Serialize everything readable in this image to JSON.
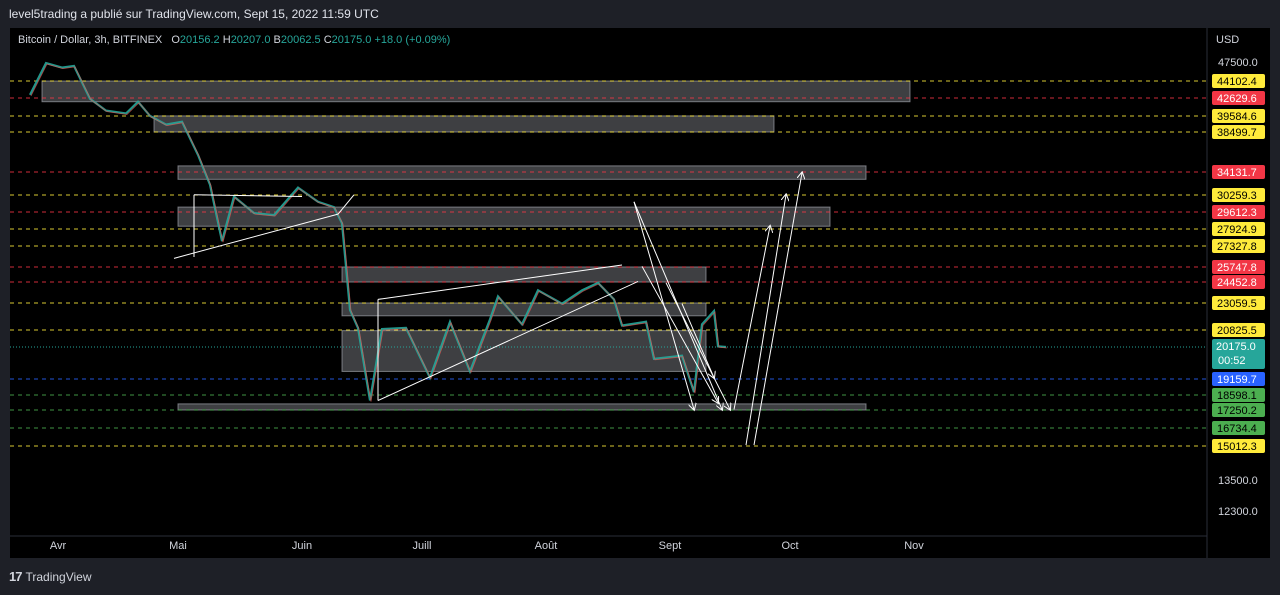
{
  "caption": "level5trading a publié sur TradingView.com, Sept 15, 2022 11:59 UTC",
  "footer": {
    "brand": "TradingView",
    "logo": "tradingview-logo-icon"
  },
  "legend": {
    "symbol": "Bitcoin / Dollar, 3h, BITFINEX",
    "open_key": "O",
    "open": "20156.2",
    "high_key": "H",
    "high": "20207.0",
    "low_key": "B",
    "low": "20062.5",
    "close_key": "C",
    "close": "20175.0",
    "change": "+18.0 (+0.09%)"
  },
  "colors": {
    "red": "#f23645",
    "yellow": "#ffeb3b",
    "green": "#4caf50",
    "blue": "#2962ff",
    "teal": "#26a69a",
    "zone": "#b2b5be"
  },
  "chart_data": {
    "type": "candlestick",
    "currency": "USD",
    "x_ticks": [
      {
        "label": "Avr",
        "date": "2022-04-01"
      },
      {
        "label": "Mai",
        "date": "2022-05-01"
      },
      {
        "label": "Juin",
        "date": "2022-06-01"
      },
      {
        "label": "Juill",
        "date": "2022-07-01"
      },
      {
        "label": "Août",
        "date": "2022-08-01"
      },
      {
        "label": "Sept",
        "date": "2022-09-01"
      },
      {
        "label": "Oct",
        "date": "2022-10-01"
      },
      {
        "label": "Nov",
        "date": "2022-11-01"
      }
    ],
    "y_ticks": [
      "47500.0",
      "13500.0",
      "12300.0"
    ],
    "levels": [
      {
        "value": 44102.4,
        "label": "44102.4",
        "color": "yellow"
      },
      {
        "value": 42629.6,
        "label": "42629.6",
        "color": "red"
      },
      {
        "value": 39584.6,
        "label": "39584.6",
        "color": "yellow"
      },
      {
        "value": 38499.7,
        "label": "38499.7",
        "color": "yellow"
      },
      {
        "value": 34131.7,
        "label": "34131.7",
        "color": "red"
      },
      {
        "value": 30259.3,
        "label": "30259.3",
        "color": "yellow"
      },
      {
        "value": 29612.3,
        "label": "29612.3",
        "color": "red"
      },
      {
        "value": 27924.9,
        "label": "27924.9",
        "color": "yellow"
      },
      {
        "value": 27327.8,
        "label": "27327.8",
        "color": "yellow"
      },
      {
        "value": 25747.8,
        "label": "25747.8",
        "color": "red"
      },
      {
        "value": 24452.8,
        "label": "24452.8",
        "color": "red"
      },
      {
        "value": 23059.5,
        "label": "23059.5",
        "color": "yellow"
      },
      {
        "value": 20825.5,
        "label": "20825.5",
        "color": "yellow"
      },
      {
        "value": 19159.7,
        "label": "19159.7",
        "color": "blue"
      },
      {
        "value": 18598.1,
        "label": "18598.1",
        "color": "green"
      },
      {
        "value": 17250.2,
        "label": "17250.2",
        "color": "green"
      },
      {
        "value": 16734.4,
        "label": "16734.4",
        "color": "green"
      },
      {
        "value": 15012.3,
        "label": "15012.3",
        "color": "yellow"
      }
    ],
    "last_price": {
      "value": 20175.0,
      "label": "20175.0",
      "countdown": "00:52"
    },
    "zones": [
      {
        "from": "2022-03-28",
        "to": "2022-10-31",
        "low": 42000,
        "high": 44100
      },
      {
        "from": "2022-04-25",
        "to": "2022-09-27",
        "low": 38500,
        "high": 39600
      },
      {
        "from": "2022-05-01",
        "to": "2022-10-20",
        "low": 32900,
        "high": 34800
      },
      {
        "from": "2022-05-01",
        "to": "2022-10-11",
        "low": 28200,
        "high": 29800
      },
      {
        "from": "2022-06-11",
        "to": "2022-09-10",
        "low": 24450,
        "high": 25750
      },
      {
        "from": "2022-06-11",
        "to": "2022-09-10",
        "low": 22000,
        "high": 23060
      },
      {
        "from": "2022-06-11",
        "to": "2022-09-10",
        "low": 19400,
        "high": 20800
      },
      {
        "from": "2022-05-01",
        "to": "2022-10-20",
        "low": 17250,
        "high": 17800
      }
    ],
    "trendlines": [
      {
        "x1": "2022-05-05",
        "y1": 30300,
        "x2": "2022-06-01",
        "y2": 30200
      },
      {
        "x1": "2022-05-05",
        "y1": 30300,
        "x2": "2022-05-05",
        "y2": 26500
      },
      {
        "x1": "2022-04-30",
        "y1": 26400,
        "x2": "2022-06-10",
        "y2": 29400
      },
      {
        "x1": "2022-06-10",
        "y1": 29400,
        "x2": "2022-06-14",
        "y2": 30300
      },
      {
        "x1": "2022-06-20",
        "y1": 23300,
        "x2": "2022-08-20",
        "y2": 25900
      },
      {
        "x1": "2022-06-20",
        "y1": 18100,
        "x2": "2022-08-24",
        "y2": 24500
      },
      {
        "x1": "2022-06-20",
        "y1": 23300,
        "x2": "2022-06-20",
        "y2": 18100
      }
    ],
    "arrows": [
      {
        "x1": "2022-08-23",
        "y1": 30000,
        "x2": "2022-09-14",
        "y2": 17300
      },
      {
        "x1": "2022-08-23",
        "y1": 30000,
        "x2": "2022-09-07",
        "y2": 17300
      },
      {
        "x1": "2022-08-25",
        "y1": 25800,
        "x2": "2022-09-13",
        "y2": 17900
      },
      {
        "x1": "2022-08-31",
        "y1": 24400,
        "x2": "2022-09-16",
        "y2": 17300
      },
      {
        "x1": "2022-09-04",
        "y1": 23000,
        "x2": "2022-09-12",
        "y2": 19200
      },
      {
        "x1": "2022-09-17",
        "y1": 17300,
        "x2": "2022-09-26",
        "y2": 28200
      },
      {
        "x1": "2022-09-20",
        "y1": 15100,
        "x2": "2022-09-30",
        "y2": 30300
      },
      {
        "x1": "2022-09-22",
        "y1": 15100,
        "x2": "2022-10-04",
        "y2": 34000
      }
    ],
    "price_path": [
      {
        "date": "2022-03-25",
        "value": 42900
      },
      {
        "date": "2022-03-29",
        "value": 47300
      },
      {
        "date": "2022-04-02",
        "value": 46500
      },
      {
        "date": "2022-04-05",
        "value": 46800
      },
      {
        "date": "2022-04-09",
        "value": 42500
      },
      {
        "date": "2022-04-13",
        "value": 40500
      },
      {
        "date": "2022-04-18",
        "value": 40000
      },
      {
        "date": "2022-04-21",
        "value": 42000
      },
      {
        "date": "2022-04-24",
        "value": 39600
      },
      {
        "date": "2022-04-28",
        "value": 39000
      },
      {
        "date": "2022-05-02",
        "value": 39200
      },
      {
        "date": "2022-05-06",
        "value": 36000
      },
      {
        "date": "2022-05-09",
        "value": 32000
      },
      {
        "date": "2022-05-12",
        "value": 27500
      },
      {
        "date": "2022-05-15",
        "value": 30200
      },
      {
        "date": "2022-05-20",
        "value": 29500
      },
      {
        "date": "2022-05-25",
        "value": 29300
      },
      {
        "date": "2022-05-31",
        "value": 31500
      },
      {
        "date": "2022-06-05",
        "value": 30000
      },
      {
        "date": "2022-06-09",
        "value": 29800
      },
      {
        "date": "2022-06-11",
        "value": 28500
      },
      {
        "date": "2022-06-13",
        "value": 22500
      },
      {
        "date": "2022-06-15",
        "value": 21000
      },
      {
        "date": "2022-06-18",
        "value": 18100
      },
      {
        "date": "2022-06-21",
        "value": 20900
      },
      {
        "date": "2022-06-27",
        "value": 21000
      },
      {
        "date": "2022-07-03",
        "value": 19200
      },
      {
        "date": "2022-07-08",
        "value": 21500
      },
      {
        "date": "2022-07-13",
        "value": 19400
      },
      {
        "date": "2022-07-18",
        "value": 21700
      },
      {
        "date": "2022-07-20",
        "value": 23500
      },
      {
        "date": "2022-07-26",
        "value": 21300
      },
      {
        "date": "2022-07-30",
        "value": 23900
      },
      {
        "date": "2022-08-05",
        "value": 23000
      },
      {
        "date": "2022-08-10",
        "value": 23900
      },
      {
        "date": "2022-08-14",
        "value": 24400
      },
      {
        "date": "2022-08-18",
        "value": 23300
      },
      {
        "date": "2022-08-20",
        "value": 21200
      },
      {
        "date": "2022-08-26",
        "value": 21500
      },
      {
        "date": "2022-08-28",
        "value": 19800
      },
      {
        "date": "2022-09-04",
        "value": 19900
      },
      {
        "date": "2022-09-07",
        "value": 18700
      },
      {
        "date": "2022-09-09",
        "value": 21300
      },
      {
        "date": "2022-09-12",
        "value": 22400
      },
      {
        "date": "2022-09-13",
        "value": 20200
      },
      {
        "date": "2022-09-15",
        "value": 20175
      }
    ]
  }
}
